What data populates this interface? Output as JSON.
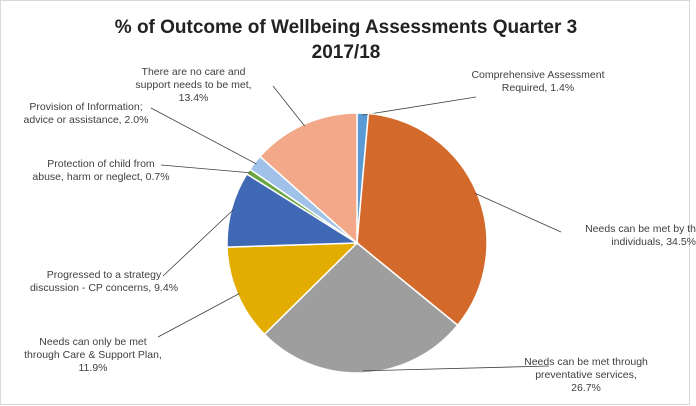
{
  "chart_data": {
    "type": "pie",
    "title": "% of Outcome of Wellbeing Assessments Quarter 3 2017/18",
    "categories": [
      "Comprehensive Assessment Required,",
      "Needs can be met by th individuals,",
      "Needs can be met through preventative services,",
      "Needs can only be met through Care & Support Plan,",
      "Progressed to a strategy discussion - CP concerns,",
      "Protection of child from abuse, harm or neglect,",
      "Provision of Information; advice or assistance,",
      "There are no care and support needs to be met,"
    ],
    "values": [
      1.4,
      34.5,
      26.7,
      11.9,
      9.4,
      0.7,
      2.0,
      13.4
    ],
    "value_labels": [
      "1.4%",
      "34.5%",
      "26.7%",
      "11.9%",
      "9.4%",
      "0.7%",
      "2.0%",
      "13.4%"
    ],
    "colors": [
      "#5b9bd5",
      "#d3692a",
      "#9e9e9e",
      "#e3ac00",
      "#3f68b5",
      "#6aa544",
      "#a0c2e8",
      "#f2a889"
    ]
  }
}
